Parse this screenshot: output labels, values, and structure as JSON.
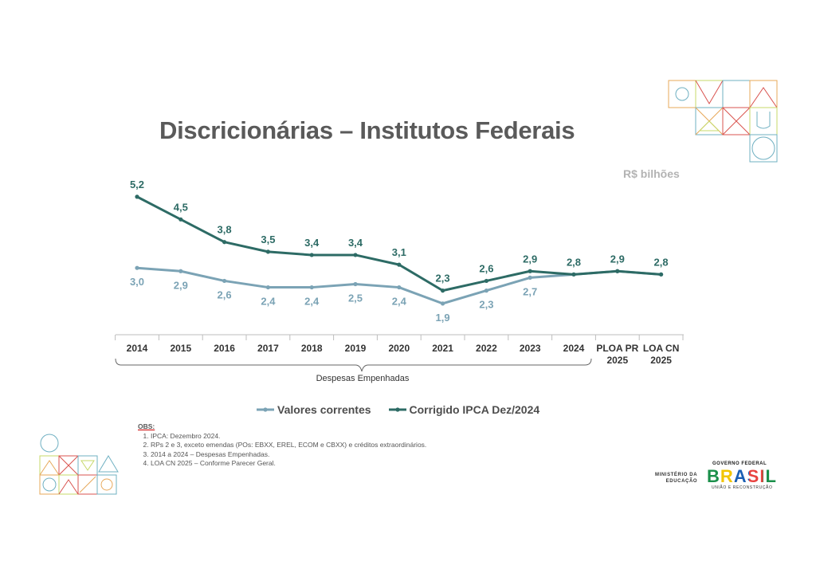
{
  "title": "Discricionárias – Institutos Federais",
  "unit": "R$ bilhões",
  "chart_data": {
    "type": "line",
    "categories": [
      "2014",
      "2015",
      "2016",
      "2017",
      "2018",
      "2019",
      "2020",
      "2021",
      "2022",
      "2023",
      "2024",
      "PLOA PR 2025",
      "LOA CN 2025"
    ],
    "category_lines": [
      [
        "2014"
      ],
      [
        "2015"
      ],
      [
        "2016"
      ],
      [
        "2017"
      ],
      [
        "2018"
      ],
      [
        "2019"
      ],
      [
        "2020"
      ],
      [
        "2021"
      ],
      [
        "2022"
      ],
      [
        "2023"
      ],
      [
        "2024"
      ],
      [
        "PLOA PR",
        "2025"
      ],
      [
        "LOA CN",
        "2025"
      ]
    ],
    "series": [
      {
        "name": "Valores correntes",
        "color": "#7ba3b5",
        "values": [
          3.0,
          2.9,
          2.6,
          2.4,
          2.4,
          2.5,
          2.4,
          1.9,
          2.3,
          2.7,
          2.8,
          2.9,
          2.8
        ],
        "labels": [
          "3,0",
          "2,9",
          "2,6",
          "2,4",
          "2,4",
          "2,5",
          "2,4",
          "1,9",
          "2,3",
          "2,7",
          null,
          null,
          null
        ]
      },
      {
        "name": "Corrigido IPCA Dez/2024",
        "color": "#2d6b65",
        "values": [
          5.2,
          4.5,
          3.8,
          3.5,
          3.4,
          3.4,
          3.1,
          2.3,
          2.6,
          2.9,
          2.8,
          2.9,
          2.8
        ],
        "labels": [
          "5,2",
          "4,5",
          "3,8",
          "3,5",
          "3,4",
          "3,4",
          "3,1",
          "2,3",
          "2,6",
          "2,9",
          "2,8",
          "2,9",
          "2,8"
        ]
      }
    ],
    "bracket_label": "Despesas Empenhadas"
  },
  "legend": [
    "Valores correntes",
    "Corrigido IPCA Dez/2024"
  ],
  "obs": {
    "title": "OBS:",
    "items": [
      "IPCA: Dezembro 2024.",
      "RPs 2 e 3, exceto emendas (POs: EBXX, EREL, ECOM e CBXX) e créditos extraordinários.",
      "2014 a 2024 – Despesas Empenhadas.",
      "LOA CN 2025 – Conforme Parecer Geral."
    ]
  },
  "footer": {
    "ministry_line1": "MINISTÉRIO DA",
    "ministry_line2": "EDUCAÇÃO",
    "gov_top": "GOVERNO FEDERAL",
    "gov_word": "BRASIL",
    "gov_bottom": "UNIÃO E RECONSTRUÇÃO"
  }
}
